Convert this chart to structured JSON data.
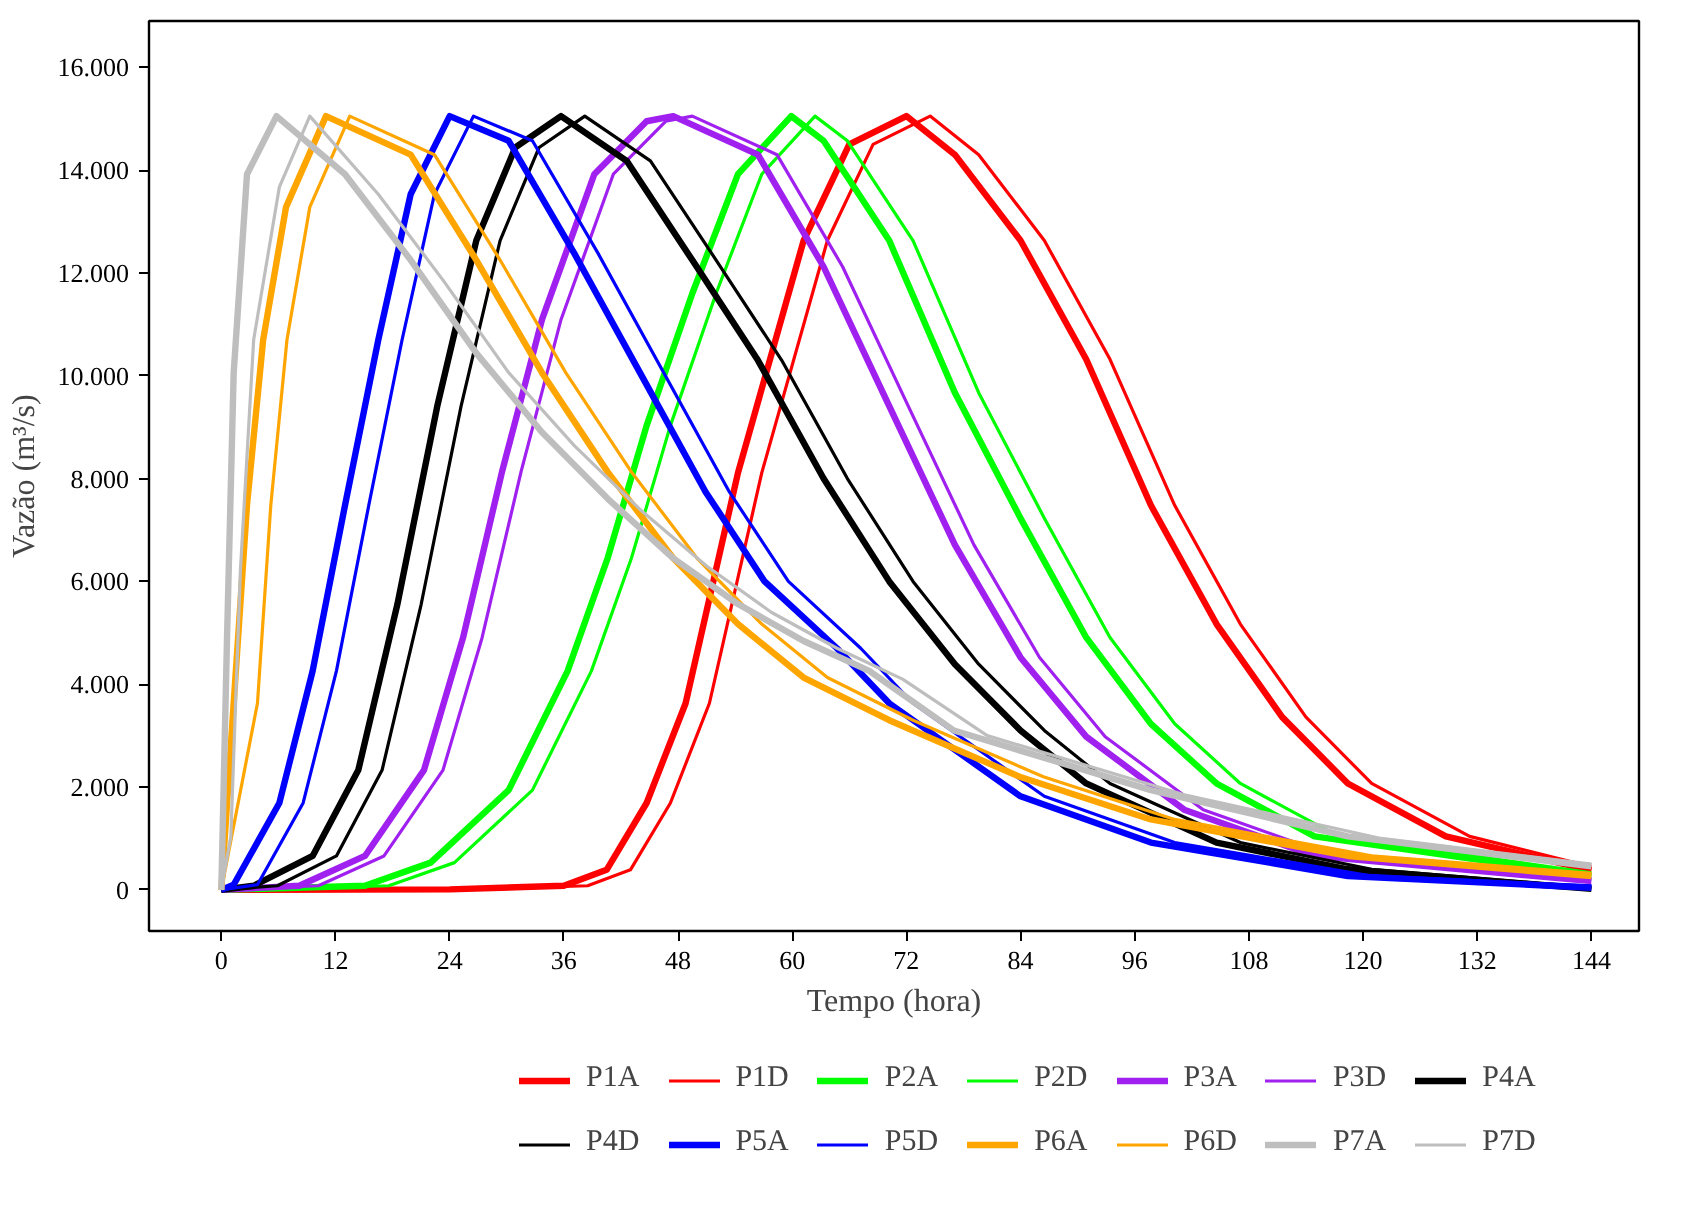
{
  "chart_data": {
    "type": "line",
    "xlabel": "Tempo (hora)",
    "ylabel": "Vazão (m³/s)",
    "xlim": [
      -7.6,
      149
    ],
    "ylim": [
      -800,
      16900
    ],
    "xticks": [
      0,
      12,
      24,
      36,
      48,
      60,
      72,
      84,
      96,
      108,
      120,
      132,
      144
    ],
    "yticks": [
      0,
      {
        "value": 2000,
        "label": "2.000"
      },
      {
        "value": 4000,
        "label": "4.000"
      },
      {
        "value": 6000,
        "label": "6.000"
      },
      {
        "value": 8000,
        "label": "8.000"
      },
      {
        "value": 10000,
        "label": "10.000"
      },
      {
        "value": 12000,
        "label": "12.000"
      },
      {
        "value": 14000,
        "label": "14.000"
      },
      {
        "value": 16000,
        "label": "16.000"
      }
    ],
    "legend": "bottom",
    "series": [
      {
        "name": "P1A",
        "color": "#ff0000",
        "x": [
          0,
          24,
          36,
          40.5,
          44.7,
          48.8,
          54.3,
          61.2,
          66,
          72,
          77.1,
          84,
          90.9,
          97.7,
          104.6,
          111.5,
          118.4,
          128.7,
          144
        ],
        "values": [
          0,
          10,
          80,
          390,
          1690,
          3630,
          8110,
          12630,
          14500,
          15050,
          14300,
          12630,
          10320,
          7480,
          5170,
          3360,
          2070,
          1040,
          380
        ]
      },
      {
        "name": "P1D",
        "color": "#ff0000",
        "x": [
          0,
          26.5,
          38.5,
          43,
          47.2,
          51.3,
          56.8,
          63.7,
          68.5,
          74.5,
          79.6,
          86.5,
          93.4,
          100.2,
          107.1,
          114,
          120.9,
          131.2,
          144
        ],
        "values": [
          0,
          10,
          80,
          390,
          1690,
          3630,
          8110,
          12630,
          14500,
          15050,
          14300,
          12630,
          10320,
          7480,
          5170,
          3360,
          2070,
          1040,
          450
        ]
      },
      {
        "name": "P2A",
        "color": "#00ff00",
        "x": [
          0,
          15.1,
          22,
          30.2,
          36.4,
          40.6,
          44.7,
          49.5,
          54.3,
          59.9,
          63.3,
          70.2,
          77.1,
          84,
          90.9,
          97.7,
          104.6,
          114.9,
          144
        ],
        "values": [
          0,
          80,
          530,
          1940,
          4260,
          6450,
          9030,
          11600,
          13920,
          15050,
          14570,
          12630,
          9670,
          7230,
          4910,
          3230,
          2070,
          1040,
          270
        ]
      },
      {
        "name": "P2D",
        "color": "#00ff00",
        "x": [
          0,
          17.6,
          24.5,
          32.7,
          38.9,
          43.1,
          47.2,
          52,
          56.8,
          62.4,
          65.8,
          72.7,
          79.6,
          86.5,
          93.4,
          100.2,
          107.1,
          117.4,
          144
        ],
        "values": [
          0,
          80,
          530,
          1940,
          4260,
          6450,
          9030,
          11600,
          13920,
          15050,
          14570,
          12630,
          9670,
          7230,
          4910,
          3230,
          2070,
          1040,
          330
        ]
      },
      {
        "name": "P3A",
        "color": "#a020f0",
        "x": [
          0,
          8.2,
          15.1,
          21.3,
          25.4,
          29.5,
          33.7,
          39.2,
          44.7,
          47.5,
          56.4,
          63.3,
          70.2,
          77.1,
          84,
          90.9,
          101.2,
          114.9,
          144
        ],
        "values": [
          0,
          80,
          660,
          2330,
          4900,
          8130,
          11090,
          13920,
          14950,
          15050,
          14300,
          12120,
          9410,
          6710,
          4520,
          2980,
          1560,
          660,
          170
        ]
      },
      {
        "name": "P3D",
        "color": "#a020f0",
        "x": [
          0,
          10.2,
          17.1,
          23.3,
          27.4,
          31.5,
          35.7,
          41.2,
          46.7,
          49.5,
          58.4,
          65.3,
          72.2,
          79.1,
          86,
          92.9,
          103.2,
          116.9,
          144
        ],
        "values": [
          0,
          80,
          660,
          2330,
          4900,
          8130,
          11090,
          13920,
          14950,
          15050,
          14300,
          12120,
          9410,
          6710,
          4520,
          2980,
          1560,
          660,
          220
        ]
      },
      {
        "name": "P4A",
        "color": "#000000",
        "x": [
          0,
          3.4,
          9.6,
          14.4,
          18.5,
          22.7,
          26.8,
          30.9,
          35.7,
          42.6,
          49.5,
          56.4,
          63.3,
          70.2,
          77.1,
          84,
          90.9,
          104.6,
          118.4,
          144
        ],
        "values": [
          0,
          80,
          660,
          2330,
          5550,
          9410,
          12630,
          14440,
          15050,
          14180,
          12250,
          10300,
          8000,
          6000,
          4390,
          3100,
          2070,
          920,
          400,
          20
        ]
      },
      {
        "name": "P4D",
        "color": "#000000",
        "x": [
          0,
          5.9,
          12.1,
          16.9,
          21,
          25.2,
          29.3,
          33.4,
          38.2,
          45.1,
          52,
          58.9,
          65.8,
          72.7,
          79.6,
          86.5,
          93.4,
          107.1,
          120.9,
          144
        ],
        "values": [
          0,
          80,
          660,
          2330,
          5550,
          9410,
          12630,
          14440,
          15050,
          14180,
          12250,
          10300,
          8000,
          6000,
          4390,
          3100,
          2070,
          920,
          400,
          40
        ]
      },
      {
        "name": "P5A",
        "color": "#0000ff",
        "x": [
          0,
          1.3,
          6.1,
          9.6,
          13,
          16.5,
          19.9,
          24,
          30.2,
          37.1,
          44,
          50.9,
          57.1,
          64.7,
          70.2,
          84,
          97.7,
          118.4,
          144
        ],
        "values": [
          0,
          100,
          1690,
          4260,
          7480,
          10700,
          13530,
          15050,
          14570,
          12380,
          10060,
          7740,
          6000,
          4700,
          3630,
          1820,
          920,
          270,
          40
        ]
      },
      {
        "name": "P5D",
        "color": "#0000ff",
        "x": [
          0,
          3.8,
          8.6,
          12.1,
          15.5,
          19,
          22.4,
          26.5,
          32.7,
          39.6,
          46.5,
          53.4,
          59.6,
          67.2,
          72.7,
          86.5,
          100.2,
          120.9,
          144
        ],
        "values": [
          0,
          100,
          1690,
          4260,
          7480,
          10700,
          13530,
          15050,
          14570,
          12380,
          10060,
          7740,
          6000,
          4700,
          3630,
          1820,
          920,
          270,
          80
        ]
      },
      {
        "name": "P6A",
        "color": "#ffa500",
        "x": [
          0,
          1.3,
          2.7,
          4.4,
          6.8,
          11,
          19.9,
          26.8,
          33.7,
          40.6,
          47.5,
          54.3,
          61.2,
          70.2,
          83.9,
          97.7,
          118.4,
          144
        ],
        "values": [
          0,
          3630,
          7480,
          10700,
          13280,
          15050,
          14300,
          12250,
          10060,
          8130,
          6450,
          5170,
          4130,
          3300,
          2200,
          1370,
          660,
          270
        ]
      },
      {
        "name": "P6D",
        "color": "#ffa500",
        "x": [
          0,
          3.8,
          5.2,
          6.9,
          9.3,
          13.5,
          22.4,
          29.3,
          36.2,
          43.1,
          50,
          56.8,
          63.7,
          72.7,
          86.4,
          100.2,
          120.9,
          144
        ],
        "values": [
          0,
          3630,
          7480,
          10700,
          13280,
          15050,
          14300,
          12250,
          10060,
          8130,
          6450,
          5170,
          4130,
          3300,
          2200,
          1370,
          660,
          320
        ]
      },
      {
        "name": "P7A",
        "color": "#bebebe",
        "x": [
          0,
          0.6,
          1.3,
          2.7,
          5.8,
          13,
          19.9,
          26.8,
          33.7,
          40.6,
          47.5,
          54.3,
          61.2,
          68.1,
          77,
          97.7,
          118.4,
          144
        ],
        "values": [
          0,
          4900,
          10060,
          13920,
          15050,
          13920,
          12250,
          10440,
          8900,
          7610,
          6450,
          5560,
          4840,
          4260,
          3100,
          1940,
          1040,
          460
        ]
      },
      {
        "name": "P7D",
        "color": "#bebebe",
        "x": [
          0,
          1,
          2,
          3.4,
          6.1,
          9.3,
          16.5,
          23.3,
          30.2,
          37.1,
          44,
          51,
          57.8,
          64.7,
          71.6,
          80.5,
          101.2,
          121.9,
          144
        ],
        "values": [
          0,
          1040,
          6190,
          10700,
          13670,
          15050,
          13530,
          11860,
          10060,
          8640,
          7400,
          6300,
          5400,
          4700,
          4100,
          3000,
          1850,
          1000,
          500
        ]
      }
    ]
  }
}
